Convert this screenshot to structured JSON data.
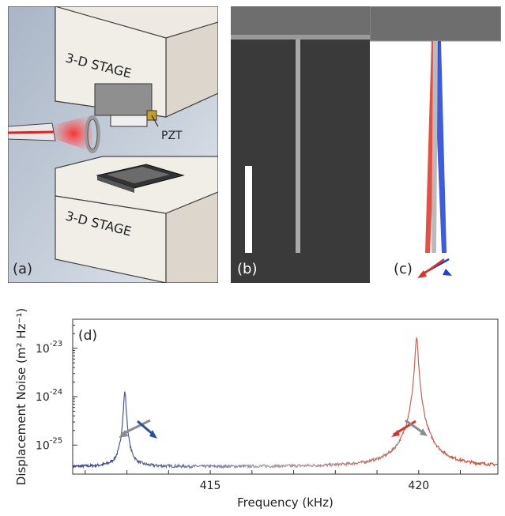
{
  "panel_a": {
    "label": "(a)",
    "stage_top": "3-D STAGE",
    "stage_bottom": "3-D STAGE",
    "pzt": "PZT"
  },
  "panel_b": {
    "label": "(b)"
  },
  "panel_c": {
    "label": "(c)"
  },
  "panel_d": {
    "label": "(d)"
  },
  "chart_data": {
    "type": "line",
    "xlabel": "Frequency (kHz)",
    "ylabel": "Displacement Noise (m² Hz⁻¹)",
    "x_ticks": [
      415,
      420
    ],
    "y_ticks": [
      "10^-25",
      "10^-24",
      "10^-23"
    ],
    "xlim": [
      411.7,
      421.9
    ],
    "ylim_log10": [
      -25.6,
      -22.4
    ],
    "yscale": "log",
    "baseline_log10": -25.45,
    "peaks": [
      {
        "x": 412.95,
        "y_log10": -23.9,
        "color": "#2b3c8f"
      },
      {
        "x": 419.95,
        "y_log10": -22.78,
        "color": "#d9452a"
      }
    ],
    "gradient": [
      "#2b3c8f",
      "#a0a0a8",
      "#d9452a"
    ]
  },
  "colors": {
    "red": "#e23022",
    "blue": "#1f3fd8",
    "gray": "#8c8c8c"
  }
}
